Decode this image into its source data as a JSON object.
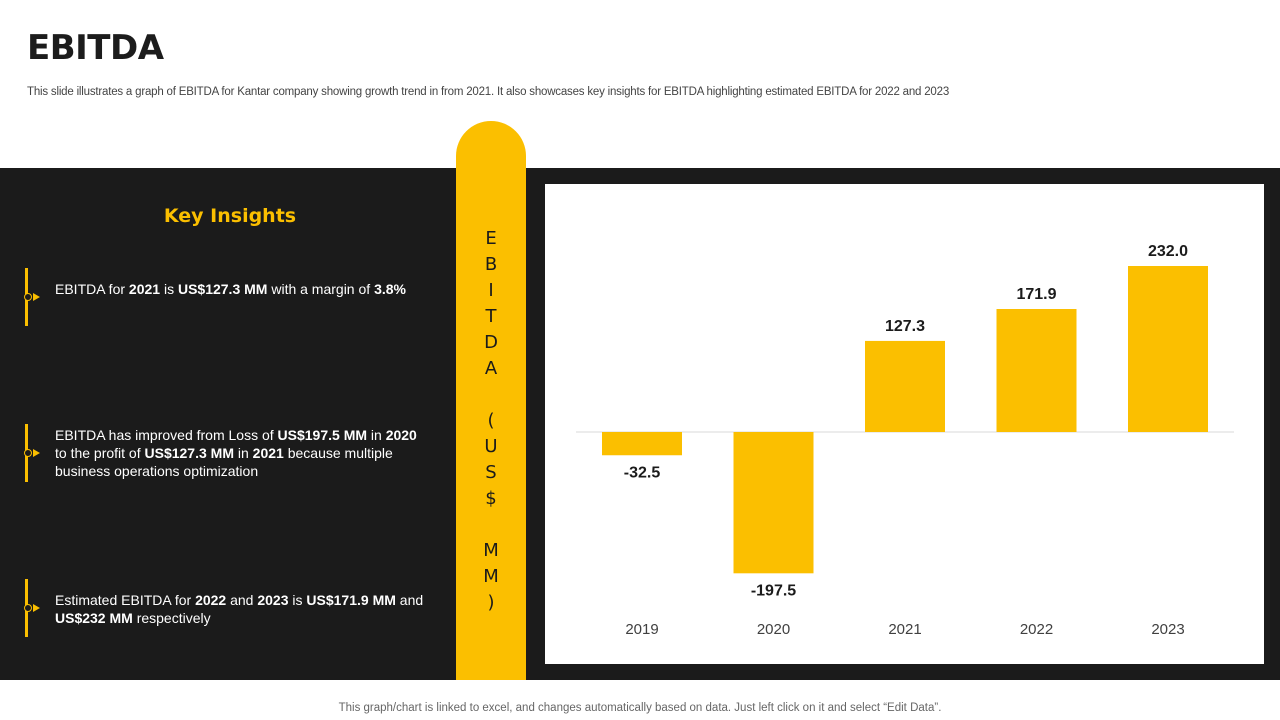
{
  "header": {
    "title": "EBITDA",
    "subtitle": "This slide illustrates a graph of EBITDA  for Kantar company showing growth trend in from 2021. It  also showcases  key insights for EBITDA highlighting estimated EBITDA for 2022 and 2023"
  },
  "insights": {
    "title": "Key Insights",
    "items": [
      {
        "parts": [
          {
            "t": "EBITDA for ",
            "b": false
          },
          {
            "t": "2021",
            "b": true
          },
          {
            "t": " is ",
            "b": false
          },
          {
            "t": "US$127.3 MM",
            "b": true
          },
          {
            "t": " with a margin of ",
            "b": false
          },
          {
            "t": "3.8%",
            "b": true
          }
        ]
      },
      {
        "parts": [
          {
            "t": "EBITDA has improved from Loss of ",
            "b": false
          },
          {
            "t": "US$197.5 MM",
            "b": true
          },
          {
            "t": " in ",
            "b": false
          },
          {
            "t": "2020",
            "b": true
          },
          {
            "t": " to the profit of ",
            "b": false
          },
          {
            "t": "US$127.3 MM",
            "b": true
          },
          {
            "t": " in ",
            "b": false
          },
          {
            "t": "2021",
            "b": true
          },
          {
            "t": " because multiple business operations optimization",
            "b": false
          }
        ]
      },
      {
        "parts": [
          {
            "t": "Estimated EBITDA for ",
            "b": false
          },
          {
            "t": "2022",
            "b": true
          },
          {
            "t": " and ",
            "b": false
          },
          {
            "t": "2023",
            "b": true
          },
          {
            "t": " is ",
            "b": false
          },
          {
            "t": "US$171.9 MM",
            "b": true
          },
          {
            "t": " and  ",
            "b": false
          },
          {
            "t": "US$232 MM",
            "b": true
          },
          {
            "t": " respectively",
            "b": false
          }
        ]
      }
    ]
  },
  "axis_label_chars": [
    "E",
    "B",
    "I",
    "T",
    "D",
    "A",
    "",
    "(",
    "U",
    "S",
    "$",
    "",
    "M",
    "M",
    ")"
  ],
  "chart_data": {
    "type": "bar",
    "categories": [
      "2019",
      "2020",
      "2021",
      "2022",
      "2023"
    ],
    "values": [
      -32.5,
      -197.5,
      127.3,
      171.9,
      232.0
    ],
    "data_labels": [
      "-32.5",
      "-197.5",
      "127.3",
      "171.9",
      "232.0"
    ],
    "ylabel": "EBITDA (US$ MM)",
    "bar_color": "#fbbf00",
    "grid": false,
    "legend": "none"
  },
  "footer": {
    "text": "This graph/chart is linked to excel,  and changes automatically based on data. Just left click on it and select “Edit Data”."
  },
  "colors": {
    "accent": "#fbbf00",
    "dark": "#1b1b1b"
  }
}
